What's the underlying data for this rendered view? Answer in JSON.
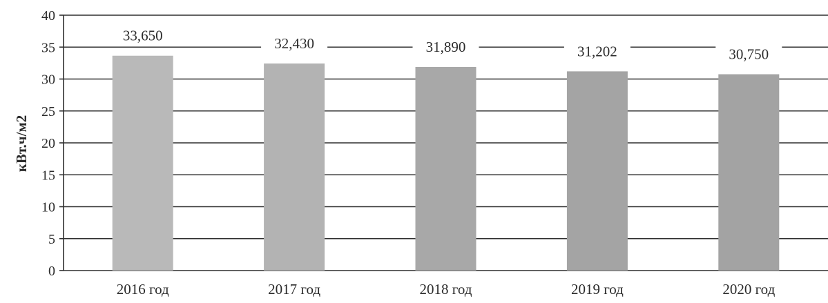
{
  "chart_data": {
    "type": "bar",
    "categories": [
      "2016 год",
      "2017 год",
      "2018 год",
      "2019 год",
      "2020 год"
    ],
    "values": [
      33.65,
      32.43,
      31.89,
      31.202,
      30.75
    ],
    "data_labels": [
      "33,650",
      "32,430",
      "31,890",
      "31,202",
      "30,750"
    ],
    "ylabel": "кВт.ч/м2",
    "ylim": [
      0,
      40
    ],
    "yticks": [
      0,
      5,
      10,
      15,
      20,
      25,
      30,
      35,
      40
    ],
    "ytick_labels": [
      "0",
      "5",
      "10",
      "15",
      "20",
      "25",
      "30",
      "35",
      "40"
    ],
    "grid": true,
    "legend": "none",
    "colors": {
      "bars": [
        "#b9b9b9",
        "#b3b3b3",
        "#a8a8a8",
        "#a4a4a4",
        "#a3a3a3"
      ],
      "grid": "#2f2f2f",
      "text": "#2b2b2b"
    }
  }
}
